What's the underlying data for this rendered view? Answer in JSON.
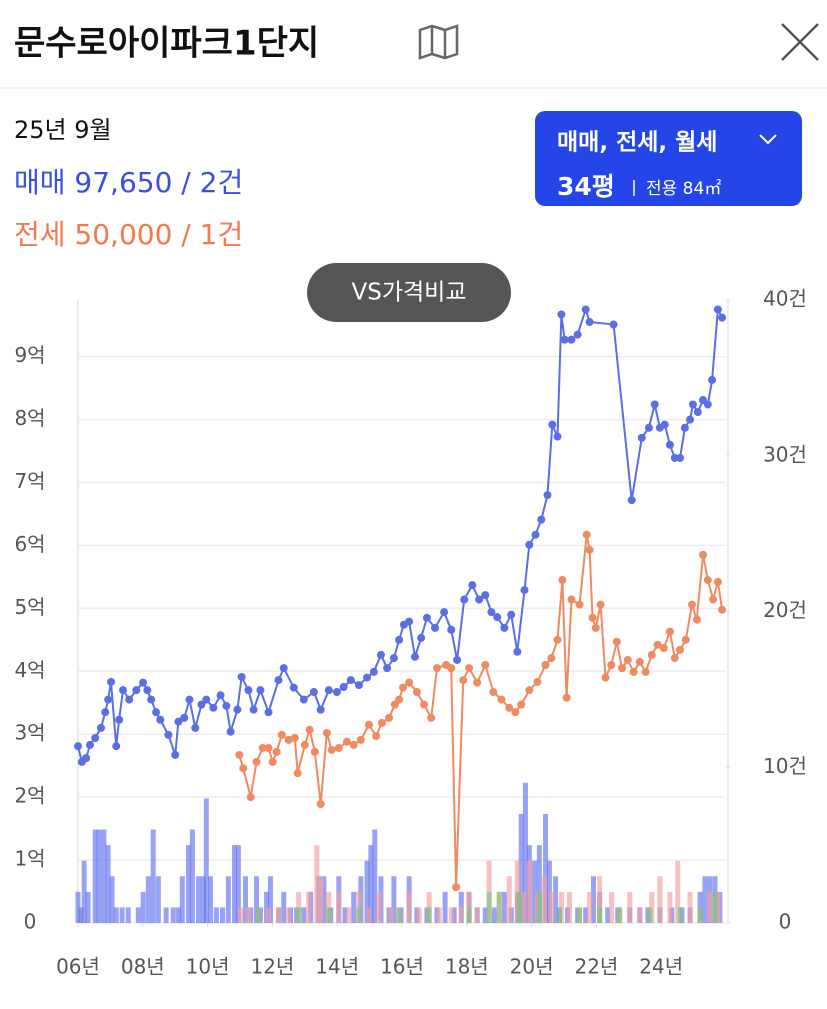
{
  "header": {
    "title": "문수로아이파크1단지"
  },
  "summary": {
    "month": "25년 9월",
    "sale": "매매 97,650 / 2건",
    "jeonse": "전세 50,000 / 1건"
  },
  "filter": {
    "types": "매매, 전세, 월세",
    "size": "34평",
    "area": "전용 84㎡"
  },
  "compare_button": "VS가격비교",
  "chart_data": {
    "type": "line",
    "grid": true,
    "xlim": [
      2006,
      2026
    ],
    "xticks": [
      {
        "value": 2006,
        "label": "06년"
      },
      {
        "value": 2008,
        "label": "08년"
      },
      {
        "value": 2010,
        "label": "10년"
      },
      {
        "value": 2012,
        "label": "12년"
      },
      {
        "value": 2014,
        "label": "14년"
      },
      {
        "value": 2016,
        "label": "16년"
      },
      {
        "value": 2018,
        "label": "18년"
      },
      {
        "value": 2020,
        "label": "20년"
      },
      {
        "value": 2022,
        "label": "22년"
      },
      {
        "value": 2024,
        "label": "24년"
      }
    ],
    "ylim": [
      0,
      9.9
    ],
    "yticks": [
      0,
      {
        "value": 1,
        "label": "1억"
      },
      {
        "value": 2,
        "label": "2억"
      },
      {
        "value": 3,
        "label": "3억"
      },
      {
        "value": 4,
        "label": "4억"
      },
      {
        "value": 5,
        "label": "5억"
      },
      {
        "value": 6,
        "label": "6억"
      },
      {
        "value": 7,
        "label": "7억"
      },
      {
        "value": 8,
        "label": "8억"
      },
      {
        "value": 9,
        "label": "9억"
      }
    ],
    "y2lim": [
      0,
      40
    ],
    "y2ticks": [
      0,
      {
        "value": 10,
        "label": "10건"
      },
      {
        "value": 20,
        "label": "20건"
      },
      {
        "value": 30,
        "label": "30건"
      },
      {
        "value": 40,
        "label": "40건"
      }
    ],
    "series": [
      {
        "type": "line",
        "color": "#5a6ee6",
        "x": [
          2006.0,
          2006.12,
          2006.25,
          2006.37,
          2006.53,
          2006.71,
          2006.84,
          2006.93,
          2007.02,
          2007.18,
          2007.27,
          2007.39,
          2007.58,
          2007.8,
          2008.01,
          2008.14,
          2008.26,
          2008.41,
          2008.54,
          2008.79,
          2009.0,
          2009.1,
          2009.28,
          2009.44,
          2009.62,
          2009.81,
          2009.96,
          2010.18,
          2010.4,
          2010.58,
          2010.71,
          2010.92,
          2011.05,
          2011.26,
          2011.42,
          2011.63,
          2011.88,
          2012.19,
          2012.35,
          2012.66,
          2012.97,
          2013.28,
          2013.49,
          2013.74,
          2013.99,
          2014.2,
          2014.42,
          2014.67,
          2014.92,
          2015.13,
          2015.35,
          2015.54,
          2015.75,
          2015.91,
          2016.06,
          2016.22,
          2016.4,
          2016.59,
          2016.77,
          2017.02,
          2017.3,
          2017.52,
          2017.7,
          2017.92,
          2018.17,
          2018.38,
          2018.57,
          2018.76,
          2018.94,
          2019.16,
          2019.37,
          2019.56,
          2019.78,
          2019.93,
          2020.12,
          2020.3,
          2020.49,
          2020.64,
          2020.8,
          2020.92,
          2021.02,
          2021.23,
          2021.42,
          2021.67,
          2021.79,
          2022.53,
          2023.09,
          2023.4,
          2023.62,
          2023.8,
          2023.96,
          2024.11,
          2024.27,
          2024.42,
          2024.58,
          2024.73,
          2024.89,
          2024.98,
          2025.13,
          2025.29,
          2025.44,
          2025.57,
          2025.75,
          2025.88
        ],
        "values": [
          2.81,
          2.56,
          2.62,
          2.83,
          2.94,
          3.1,
          3.35,
          3.55,
          3.83,
          2.81,
          3.23,
          3.7,
          3.55,
          3.7,
          3.82,
          3.7,
          3.55,
          3.35,
          3.23,
          2.99,
          2.67,
          3.2,
          3.26,
          3.55,
          3.1,
          3.47,
          3.55,
          3.42,
          3.62,
          3.45,
          3.04,
          3.39,
          3.91,
          3.7,
          3.39,
          3.7,
          3.35,
          3.86,
          4.05,
          3.74,
          3.55,
          3.67,
          3.39,
          3.7,
          3.67,
          3.75,
          3.86,
          3.78,
          3.9,
          3.99,
          4.26,
          4.05,
          4.21,
          4.5,
          4.74,
          4.79,
          4.23,
          4.53,
          4.85,
          4.69,
          4.94,
          4.66,
          4.18,
          5.14,
          5.37,
          5.14,
          5.21,
          4.94,
          4.86,
          4.69,
          4.9,
          4.31,
          5.29,
          6.01,
          6.17,
          6.41,
          6.8,
          7.92,
          7.73,
          9.67,
          9.27,
          9.27,
          9.35,
          9.75,
          9.55,
          9.51,
          6.72,
          7.71,
          7.87,
          8.24,
          7.87,
          7.92,
          7.6,
          7.39,
          7.39,
          7.87,
          8.0,
          8.24,
          8.12,
          8.31,
          8.24,
          8.63,
          9.75,
          9.62
        ]
      },
      {
        "type": "line",
        "color": "#f08a60",
        "x": [
          2010.98,
          2011.1,
          2011.33,
          2011.51,
          2011.7,
          2011.88,
          2012.01,
          2012.13,
          2012.29,
          2012.5,
          2012.69,
          2012.78,
          2013.0,
          2013.15,
          2013.31,
          2013.49,
          2013.68,
          2013.83,
          2014.05,
          2014.3,
          2014.51,
          2014.73,
          2014.98,
          2015.2,
          2015.38,
          2015.6,
          2015.78,
          2015.91,
          2016.03,
          2016.22,
          2016.46,
          2016.68,
          2016.9,
          2017.08,
          2017.36,
          2017.52,
          2017.67,
          2017.89,
          2018.07,
          2018.32,
          2018.57,
          2018.82,
          2019.07,
          2019.31,
          2019.5,
          2019.68,
          2019.93,
          2020.18,
          2020.43,
          2020.61,
          2020.8,
          2020.95,
          2021.08,
          2021.23,
          2021.48,
          2021.7,
          2021.79,
          2021.88,
          2021.98,
          2022.13,
          2022.28,
          2022.46,
          2022.63,
          2022.79,
          2022.97,
          2023.15,
          2023.34,
          2023.52,
          2023.71,
          2023.89,
          2024.08,
          2024.27,
          2024.42,
          2024.58,
          2024.76,
          2024.95,
          2025.1,
          2025.29,
          2025.44,
          2025.6,
          2025.75,
          2025.88
        ],
        "values": [
          2.67,
          2.46,
          2.0,
          2.56,
          2.78,
          2.78,
          2.56,
          2.72,
          2.99,
          2.91,
          2.94,
          2.38,
          2.83,
          3.07,
          2.72,
          1.89,
          3.02,
          2.75,
          2.78,
          2.88,
          2.83,
          2.91,
          3.15,
          2.97,
          3.18,
          3.26,
          3.47,
          3.55,
          3.74,
          3.82,
          3.67,
          3.47,
          3.26,
          4.05,
          4.1,
          4.05,
          0.57,
          3.86,
          4.05,
          3.82,
          4.1,
          3.67,
          3.55,
          3.42,
          3.35,
          3.47,
          3.7,
          3.83,
          4.1,
          4.21,
          4.5,
          5.45,
          3.58,
          5.14,
          5.06,
          6.17,
          5.93,
          4.85,
          4.69,
          5.06,
          3.9,
          4.1,
          4.47,
          4.05,
          4.18,
          3.99,
          4.15,
          3.99,
          4.26,
          4.42,
          4.37,
          4.63,
          4.21,
          4.34,
          4.5,
          5.06,
          4.82,
          5.85,
          5.45,
          5.14,
          5.42,
          4.98
        ]
      },
      {
        "type": "bar",
        "axis": "y2",
        "color": "#6272ee",
        "x": [
          2006.0,
          2006.09,
          2006.19,
          2006.31,
          2006.53,
          2006.65,
          2006.8,
          2006.93,
          2007.05,
          2007.18,
          2007.36,
          2007.55,
          2007.86,
          2008.01,
          2008.17,
          2008.32,
          2008.48,
          2008.72,
          2008.94,
          2009.1,
          2009.22,
          2009.41,
          2009.53,
          2009.72,
          2009.87,
          2009.96,
          2010.09,
          2010.27,
          2010.46,
          2010.64,
          2010.83,
          2010.95,
          2011.17,
          2011.33,
          2011.51,
          2011.63,
          2011.82,
          2011.94,
          2012.19,
          2012.35,
          2012.56,
          2012.75,
          2012.97,
          2013.18,
          2013.43,
          2013.59,
          2013.8,
          2014.05,
          2014.24,
          2014.51,
          2014.73,
          2014.92,
          2015.04,
          2015.16,
          2015.35,
          2015.6,
          2015.75,
          2015.97,
          2016.22,
          2016.46,
          2016.77,
          2017.08,
          2017.33,
          2017.61,
          2017.83,
          2018.07,
          2018.32,
          2018.57,
          2018.85,
          2019.16,
          2019.37,
          2019.56,
          2019.68,
          2019.81,
          2019.93,
          2020.09,
          2020.24,
          2020.43,
          2020.55,
          2020.74,
          2020.86,
          2021.11,
          2021.42,
          2021.67,
          2021.91,
          2022.1,
          2022.35,
          2022.66,
          2023.03,
          2023.34,
          2023.59,
          2023.96,
          2024.33,
          2024.64,
          2024.89,
          2025.2,
          2025.35,
          2025.5,
          2025.66,
          2025.81
        ],
        "values": [
          2,
          1,
          4,
          2,
          6,
          6,
          6,
          5,
          3,
          1,
          1,
          1,
          1,
          2,
          3,
          6,
          3,
          1,
          1,
          1,
          3,
          5,
          6,
          3,
          3,
          8,
          3,
          1,
          1,
          3,
          5,
          5,
          3,
          1,
          3,
          1,
          2,
          3,
          1,
          2,
          1,
          1,
          1,
          2,
          3,
          3,
          1,
          3,
          1,
          2,
          3,
          4,
          5,
          6,
          3,
          1,
          3,
          1,
          3,
          1,
          1,
          1,
          2,
          1,
          2,
          2,
          1,
          1,
          1,
          2,
          1,
          2,
          7,
          9,
          5,
          4,
          5,
          7,
          4,
          3,
          1,
          1,
          1,
          1,
          3,
          2,
          1,
          1,
          1,
          1,
          1,
          1,
          1,
          1,
          1,
          2,
          3,
          3,
          3,
          2
        ]
      },
      {
        "type": "bar",
        "axis": "y2",
        "color": "#f4a0a0",
        "x": [
          2011.02,
          2011.26,
          2011.57,
          2011.88,
          2012.19,
          2012.5,
          2012.81,
          2013.12,
          2013.37,
          2013.49,
          2013.74,
          2014.05,
          2014.36,
          2014.67,
          2014.98,
          2015.29,
          2015.66,
          2015.91,
          2016.22,
          2016.53,
          2016.84,
          2017.15,
          2017.52,
          2017.83,
          2018.07,
          2018.32,
          2018.69,
          2019.0,
          2019.31,
          2019.56,
          2019.75,
          2019.93,
          2020.18,
          2020.4,
          2020.61,
          2020.92,
          2021.17,
          2021.48,
          2021.79,
          2022.1,
          2022.47,
          2022.72,
          2023.03,
          2023.34,
          2023.71,
          2023.96,
          2024.27,
          2024.51,
          2024.89,
          2025.2,
          2025.5,
          2025.75
        ],
        "values": [
          1,
          1,
          1,
          1,
          1,
          1,
          2,
          2,
          5,
          3,
          2,
          2,
          1,
          2,
          1,
          2,
          1,
          1,
          2,
          1,
          2,
          1,
          1,
          1,
          2,
          1,
          4,
          2,
          3,
          4,
          2,
          4,
          2,
          3,
          2,
          2,
          2,
          1,
          2,
          3,
          2,
          1,
          2,
          1,
          2,
          3,
          2,
          4,
          2,
          1,
          2,
          2
        ]
      },
      {
        "type": "bar",
        "axis": "y2",
        "color": "#7cc47c",
        "x": [
          2011.57,
          2012.81,
          2013.74,
          2014.67,
          2015.91,
          2016.84,
          2018.07,
          2018.69,
          2019.0,
          2019.62,
          2020.24,
          2020.86,
          2021.48,
          2022.1,
          2022.72,
          2023.65,
          2024.58,
          2025.2,
          2025.66
        ],
        "values": [
          1,
          1,
          1,
          1,
          1,
          1,
          1,
          2,
          2,
          2,
          2,
          1,
          1,
          1,
          1,
          1,
          1,
          1,
          2
        ]
      }
    ]
  }
}
